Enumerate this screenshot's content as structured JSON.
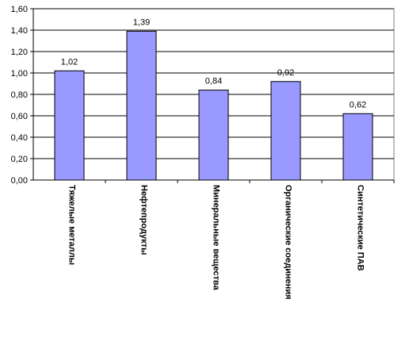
{
  "chart_data": {
    "type": "bar",
    "categories": [
      "Тяжелые металлы",
      "Нефтепродукты",
      "Минеральные вещества",
      "Органические соединения",
      "Синтетические ПАВ"
    ],
    "values": [
      1.02,
      1.39,
      0.84,
      0.92,
      0.62
    ],
    "value_labels": [
      "1,02",
      "1,39",
      "0,84",
      "0,92",
      "0,62"
    ],
    "color": "#9999ff",
    "ylim": [
      0,
      1.6
    ],
    "yticks": [
      {
        "value": 0,
        "label": "0,00"
      },
      {
        "value": 0.2,
        "label": "0,20"
      },
      {
        "value": 0.4,
        "label": "0,40"
      },
      {
        "value": 0.6,
        "label": "0,60"
      },
      {
        "value": 0.8,
        "label": "0,80"
      },
      {
        "value": 1.0,
        "label": "1,00"
      },
      {
        "value": 1.2,
        "label": "1,20"
      },
      {
        "value": 1.4,
        "label": "1,40"
      },
      {
        "value": 1.6,
        "label": "1,60"
      }
    ],
    "grid": true
  }
}
